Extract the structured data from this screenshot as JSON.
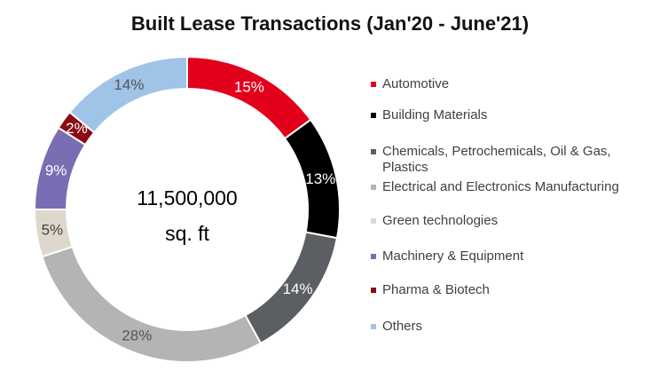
{
  "chart_data": {
    "type": "donut",
    "title": "Built Lease Transactions (Jan'20 - June'21)",
    "categories": [
      "Automotive",
      "Building Materials",
      "Chemicals, Petrochemicals, Oil & Gas, Plastics",
      "Electrical and Electronics Manufacturing",
      "Green technologies",
      "Machinery & Equipment",
      "Pharma & Biotech",
      "Others"
    ],
    "values": [
      15,
      13,
      14,
      28,
      5,
      9,
      2,
      14
    ],
    "value_labels": [
      "15%",
      "13%",
      "14%",
      "28%",
      "5%",
      "9%",
      "2%",
      "14%"
    ],
    "colors": [
      "#e3001b",
      "#000000",
      "#5b5e63",
      "#b4b4b4",
      "#ddd8cb",
      "#7a6db3",
      "#8b0a14",
      "#9fc4e7"
    ],
    "annotations": [
      "11,500,000",
      "sq. ft"
    ],
    "legend": "right"
  }
}
